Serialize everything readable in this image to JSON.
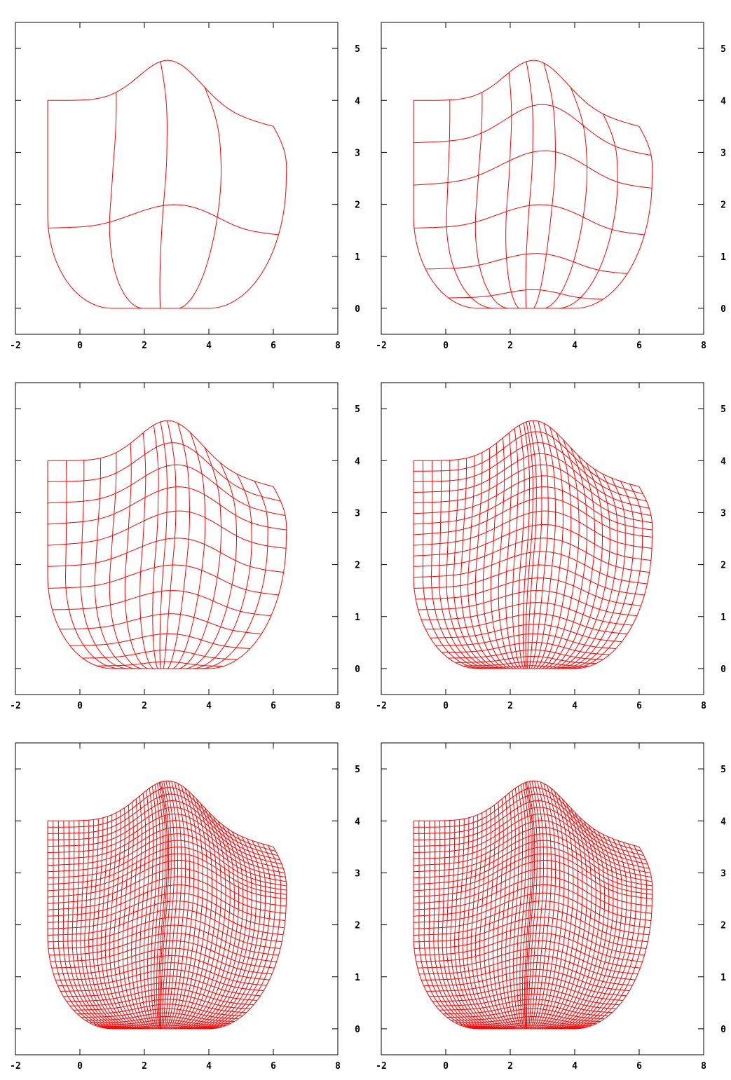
{
  "colors": {
    "mesh": "#ff0000",
    "axes": "#000000",
    "background": "#ffffff"
  },
  "chart_data": [
    {
      "type": "line",
      "title": "",
      "xlabel": "",
      "ylabel": "",
      "grid": false,
      "mesh_lines": [
        5,
        3
      ],
      "xlim": [
        -2,
        8
      ],
      "ylim": [
        -0.5,
        5.5
      ],
      "x_ticks": [
        "-2",
        "0",
        "2",
        "4",
        "6",
        "8"
      ],
      "y_ticks": [
        "0",
        "1",
        "2",
        "3",
        "4",
        "5"
      ],
      "y_axis_side": "right"
    },
    {
      "type": "line",
      "title": "",
      "xlabel": "",
      "ylabel": "",
      "grid": false,
      "mesh_lines": [
        9,
        7
      ],
      "xlim": [
        -2,
        8
      ],
      "ylim": [
        -0.5,
        5.5
      ],
      "x_ticks": [
        "-2",
        "0",
        "2",
        "4",
        "6",
        "8"
      ],
      "y_ticks": [
        "0",
        "1",
        "2",
        "3",
        "4",
        "5"
      ],
      "y_axis_side": "right"
    },
    {
      "type": "line",
      "title": "",
      "xlabel": "",
      "ylabel": "",
      "grid": false,
      "mesh_lines": [
        17,
        13
      ],
      "xlim": [
        -2,
        8
      ],
      "ylim": [
        -0.5,
        5.5
      ],
      "x_ticks": [
        "-2",
        "0",
        "2",
        "4",
        "6",
        "8"
      ],
      "y_ticks": [
        "0",
        "1",
        "2",
        "3",
        "4",
        "5"
      ],
      "y_axis_side": "right"
    },
    {
      "type": "line",
      "title": "",
      "xlabel": "",
      "ylabel": "",
      "grid": false,
      "mesh_lines": [
        33,
        25
      ],
      "xlim": [
        -2,
        8
      ],
      "ylim": [
        -0.5,
        5.5
      ],
      "x_ticks": [
        "-2",
        "0",
        "2",
        "4",
        "6",
        "8"
      ],
      "y_ticks": [
        "0",
        "1",
        "2",
        "3",
        "4",
        "5"
      ],
      "y_axis_side": "right"
    },
    {
      "type": "line",
      "title": "",
      "xlabel": "",
      "ylabel": "",
      "grid": false,
      "mesh_lines": [
        57,
        41
      ],
      "xlim": [
        -2,
        8
      ],
      "ylim": [
        -0.5,
        5.5
      ],
      "x_ticks": [
        "-2",
        "0",
        "2",
        "4",
        "6",
        "8"
      ],
      "y_ticks": [
        "0",
        "1",
        "2",
        "3",
        "4",
        "5"
      ],
      "y_axis_side": "right"
    },
    {
      "type": "line",
      "title": "",
      "xlabel": "",
      "ylabel": "",
      "grid": false,
      "mesh_lines": [
        57,
        41
      ],
      "xlim": [
        -2,
        8
      ],
      "ylim": [
        -0.5,
        5.5
      ],
      "x_ticks": [
        "-2",
        "0",
        "2",
        "4",
        "6",
        "8"
      ],
      "y_ticks": [
        "0",
        "1",
        "2",
        "3",
        "4",
        "5"
      ],
      "y_axis_side": "right"
    }
  ]
}
